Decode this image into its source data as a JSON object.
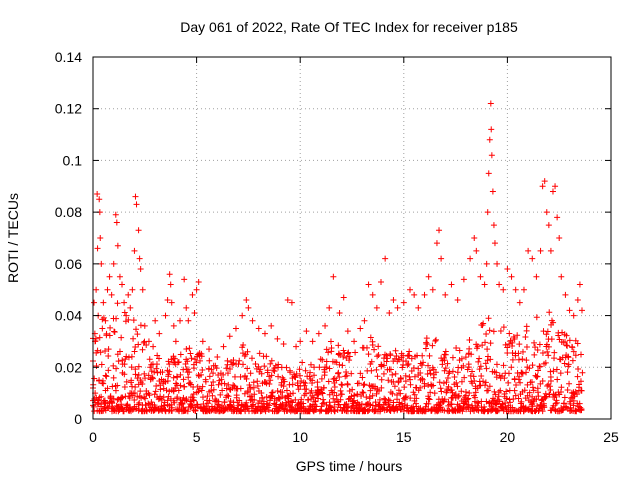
{
  "chart_data": {
    "type": "scatter",
    "title": "Day 061 of 2022, Rate Of TEC Index for receiver p185",
    "xlabel": "GPS time / hours",
    "ylabel": "ROTI / TECUs",
    "xlim": [
      0,
      25
    ],
    "ylim": [
      0,
      0.14
    ],
    "xticks": [
      0,
      5,
      10,
      15,
      20,
      25
    ],
    "xtick_labels": [
      "0",
      "5",
      "10",
      "15",
      "20",
      "25"
    ],
    "yticks": [
      0,
      0.02,
      0.04,
      0.06,
      0.08,
      0.1,
      0.12,
      0.14
    ],
    "ytick_labels": [
      "0",
      "0.02",
      "0.04",
      "0.06",
      "0.08",
      "0.1",
      "0.12",
      "0.14"
    ],
    "grid": true,
    "marker": "plus",
    "color": "#ff0000",
    "series": [
      {
        "points": [
          [
            0.05,
            0.045
          ],
          [
            0.1,
            0.03
          ],
          [
            0.15,
            0.05
          ],
          [
            0.2,
            0.087
          ],
          [
            0.22,
            0.066
          ],
          [
            0.25,
            0.04
          ],
          [
            0.3,
            0.085
          ],
          [
            0.33,
            0.08
          ],
          [
            0.35,
            0.07
          ],
          [
            0.4,
            0.06
          ],
          [
            0.45,
            0.035
          ],
          [
            0.5,
            0.045
          ],
          [
            0.6,
            0.038
          ],
          [
            0.7,
            0.05
          ],
          [
            0.8,
            0.055
          ],
          [
            0.9,
            0.048
          ],
          [
            1.0,
            0.06
          ],
          [
            1.1,
            0.079
          ],
          [
            1.15,
            0.076
          ],
          [
            1.2,
            0.067
          ],
          [
            1.3,
            0.055
          ],
          [
            1.4,
            0.052
          ],
          [
            1.5,
            0.045
          ],
          [
            1.6,
            0.04
          ],
          [
            1.7,
            0.048
          ],
          [
            1.8,
            0.043
          ],
          [
            1.9,
            0.05
          ],
          [
            2.0,
            0.065
          ],
          [
            2.05,
            0.086
          ],
          [
            2.1,
            0.083
          ],
          [
            2.2,
            0.073
          ],
          [
            2.25,
            0.062
          ],
          [
            2.3,
            0.058
          ],
          [
            2.4,
            0.05
          ],
          [
            2.5,
            0.036
          ],
          [
            2.7,
            0.03
          ],
          [
            2.9,
            0.028
          ],
          [
            3.0,
            0.038
          ],
          [
            3.2,
            0.033
          ],
          [
            3.5,
            0.04
          ],
          [
            3.6,
            0.046
          ],
          [
            3.7,
            0.056
          ],
          [
            3.75,
            0.052
          ],
          [
            3.8,
            0.045
          ],
          [
            3.9,
            0.036
          ],
          [
            4.0,
            0.03
          ],
          [
            4.2,
            0.038
          ],
          [
            4.4,
            0.054
          ],
          [
            4.5,
            0.043
          ],
          [
            4.6,
            0.038
          ],
          [
            4.8,
            0.048
          ],
          [
            4.9,
            0.041
          ],
          [
            5.0,
            0.05
          ],
          [
            5.1,
            0.053
          ],
          [
            5.3,
            0.03
          ],
          [
            5.6,
            0.027
          ],
          [
            6.0,
            0.024
          ],
          [
            6.3,
            0.028
          ],
          [
            6.6,
            0.032
          ],
          [
            6.9,
            0.035
          ],
          [
            7.2,
            0.04
          ],
          [
            7.4,
            0.046
          ],
          [
            7.5,
            0.043
          ],
          [
            7.7,
            0.038
          ],
          [
            8.0,
            0.035
          ],
          [
            8.3,
            0.033
          ],
          [
            8.6,
            0.036
          ],
          [
            8.9,
            0.031
          ],
          [
            9.2,
            0.029
          ],
          [
            9.4,
            0.046
          ],
          [
            9.6,
            0.045
          ],
          [
            9.8,
            0.028
          ],
          [
            10.0,
            0.03
          ],
          [
            10.3,
            0.034
          ],
          [
            10.6,
            0.03
          ],
          [
            10.9,
            0.033
          ],
          [
            11.2,
            0.036
          ],
          [
            11.4,
            0.043
          ],
          [
            11.6,
            0.055
          ],
          [
            11.9,
            0.041
          ],
          [
            12.1,
            0.047
          ],
          [
            12.3,
            0.034
          ],
          [
            12.6,
            0.03
          ],
          [
            12.9,
            0.035
          ],
          [
            13.1,
            0.038
          ],
          [
            13.3,
            0.052
          ],
          [
            13.5,
            0.048
          ],
          [
            13.7,
            0.043
          ],
          [
            13.9,
            0.053
          ],
          [
            14.1,
            0.062
          ],
          [
            14.3,
            0.041
          ],
          [
            14.5,
            0.046
          ],
          [
            14.7,
            0.043
          ],
          [
            15.0,
            0.045
          ],
          [
            15.3,
            0.05
          ],
          [
            15.5,
            0.048
          ],
          [
            15.7,
            0.043
          ],
          [
            16.0,
            0.048
          ],
          [
            16.2,
            0.055
          ],
          [
            16.4,
            0.05
          ],
          [
            16.6,
            0.068
          ],
          [
            16.7,
            0.073
          ],
          [
            16.8,
            0.062
          ],
          [
            17.0,
            0.048
          ],
          [
            17.3,
            0.052
          ],
          [
            17.6,
            0.046
          ],
          [
            17.9,
            0.054
          ],
          [
            18.2,
            0.062
          ],
          [
            18.4,
            0.07
          ],
          [
            18.5,
            0.065
          ],
          [
            18.7,
            0.055
          ],
          [
            18.9,
            0.052
          ],
          [
            19.0,
            0.06
          ],
          [
            19.05,
            0.08
          ],
          [
            19.1,
            0.095
          ],
          [
            19.15,
            0.108
          ],
          [
            19.2,
            0.122
          ],
          [
            19.22,
            0.112
          ],
          [
            19.25,
            0.102
          ],
          [
            19.3,
            0.088
          ],
          [
            19.35,
            0.075
          ],
          [
            19.4,
            0.068
          ],
          [
            19.5,
            0.06
          ],
          [
            19.6,
            0.052
          ],
          [
            19.8,
            0.05
          ],
          [
            20.0,
            0.058
          ],
          [
            20.2,
            0.055
          ],
          [
            20.4,
            0.05
          ],
          [
            20.6,
            0.045
          ],
          [
            20.8,
            0.05
          ],
          [
            21.0,
            0.065
          ],
          [
            21.2,
            0.062
          ],
          [
            21.4,
            0.055
          ],
          [
            21.6,
            0.065
          ],
          [
            21.7,
            0.09
          ],
          [
            21.8,
            0.092
          ],
          [
            21.9,
            0.08
          ],
          [
            22.0,
            0.075
          ],
          [
            22.1,
            0.065
          ],
          [
            22.2,
            0.088
          ],
          [
            22.3,
            0.09
          ],
          [
            22.4,
            0.078
          ],
          [
            22.5,
            0.07
          ],
          [
            22.6,
            0.055
          ],
          [
            22.8,
            0.048
          ],
          [
            23.0,
            0.042
          ],
          [
            23.2,
            0.04
          ],
          [
            23.4,
            0.046
          ],
          [
            23.5,
            0.052
          ],
          [
            23.6,
            0.042
          ]
        ],
        "band": {
          "floor": 0.003,
          "x_step": 0.09,
          "upper_envelope": [
            [
              0,
              0.035
            ],
            [
              0.5,
              0.04
            ],
            [
              1,
              0.045
            ],
            [
              1.5,
              0.045
            ],
            [
              2,
              0.048
            ],
            [
              2.5,
              0.033
            ],
            [
              3,
              0.025
            ],
            [
              3.5,
              0.023
            ],
            [
              4,
              0.025
            ],
            [
              4.5,
              0.028
            ],
            [
              5,
              0.027
            ],
            [
              5.5,
              0.023
            ],
            [
              6,
              0.021
            ],
            [
              6.5,
              0.024
            ],
            [
              7,
              0.027
            ],
            [
              7.5,
              0.03
            ],
            [
              8,
              0.026
            ],
            [
              8.5,
              0.025
            ],
            [
              9,
              0.022
            ],
            [
              9.5,
              0.02
            ],
            [
              10,
              0.022
            ],
            [
              10.5,
              0.024
            ],
            [
              11,
              0.025
            ],
            [
              11.5,
              0.031
            ],
            [
              12,
              0.028
            ],
            [
              12.5,
              0.026
            ],
            [
              13,
              0.028
            ],
            [
              13.5,
              0.033
            ],
            [
              14,
              0.03
            ],
            [
              14.5,
              0.028
            ],
            [
              15,
              0.026
            ],
            [
              15.5,
              0.027
            ],
            [
              16,
              0.031
            ],
            [
              16.5,
              0.035
            ],
            [
              17,
              0.03
            ],
            [
              17.5,
              0.028
            ],
            [
              18,
              0.03
            ],
            [
              18.5,
              0.035
            ],
            [
              19,
              0.04
            ],
            [
              19.5,
              0.042
            ],
            [
              20,
              0.038
            ],
            [
              20.5,
              0.035
            ],
            [
              21,
              0.038
            ],
            [
              21.5,
              0.04
            ],
            [
              22,
              0.043
            ],
            [
              22.5,
              0.038
            ],
            [
              23,
              0.032
            ],
            [
              23.6,
              0.03
            ]
          ],
          "x_end": 23.6
        }
      }
    ]
  }
}
